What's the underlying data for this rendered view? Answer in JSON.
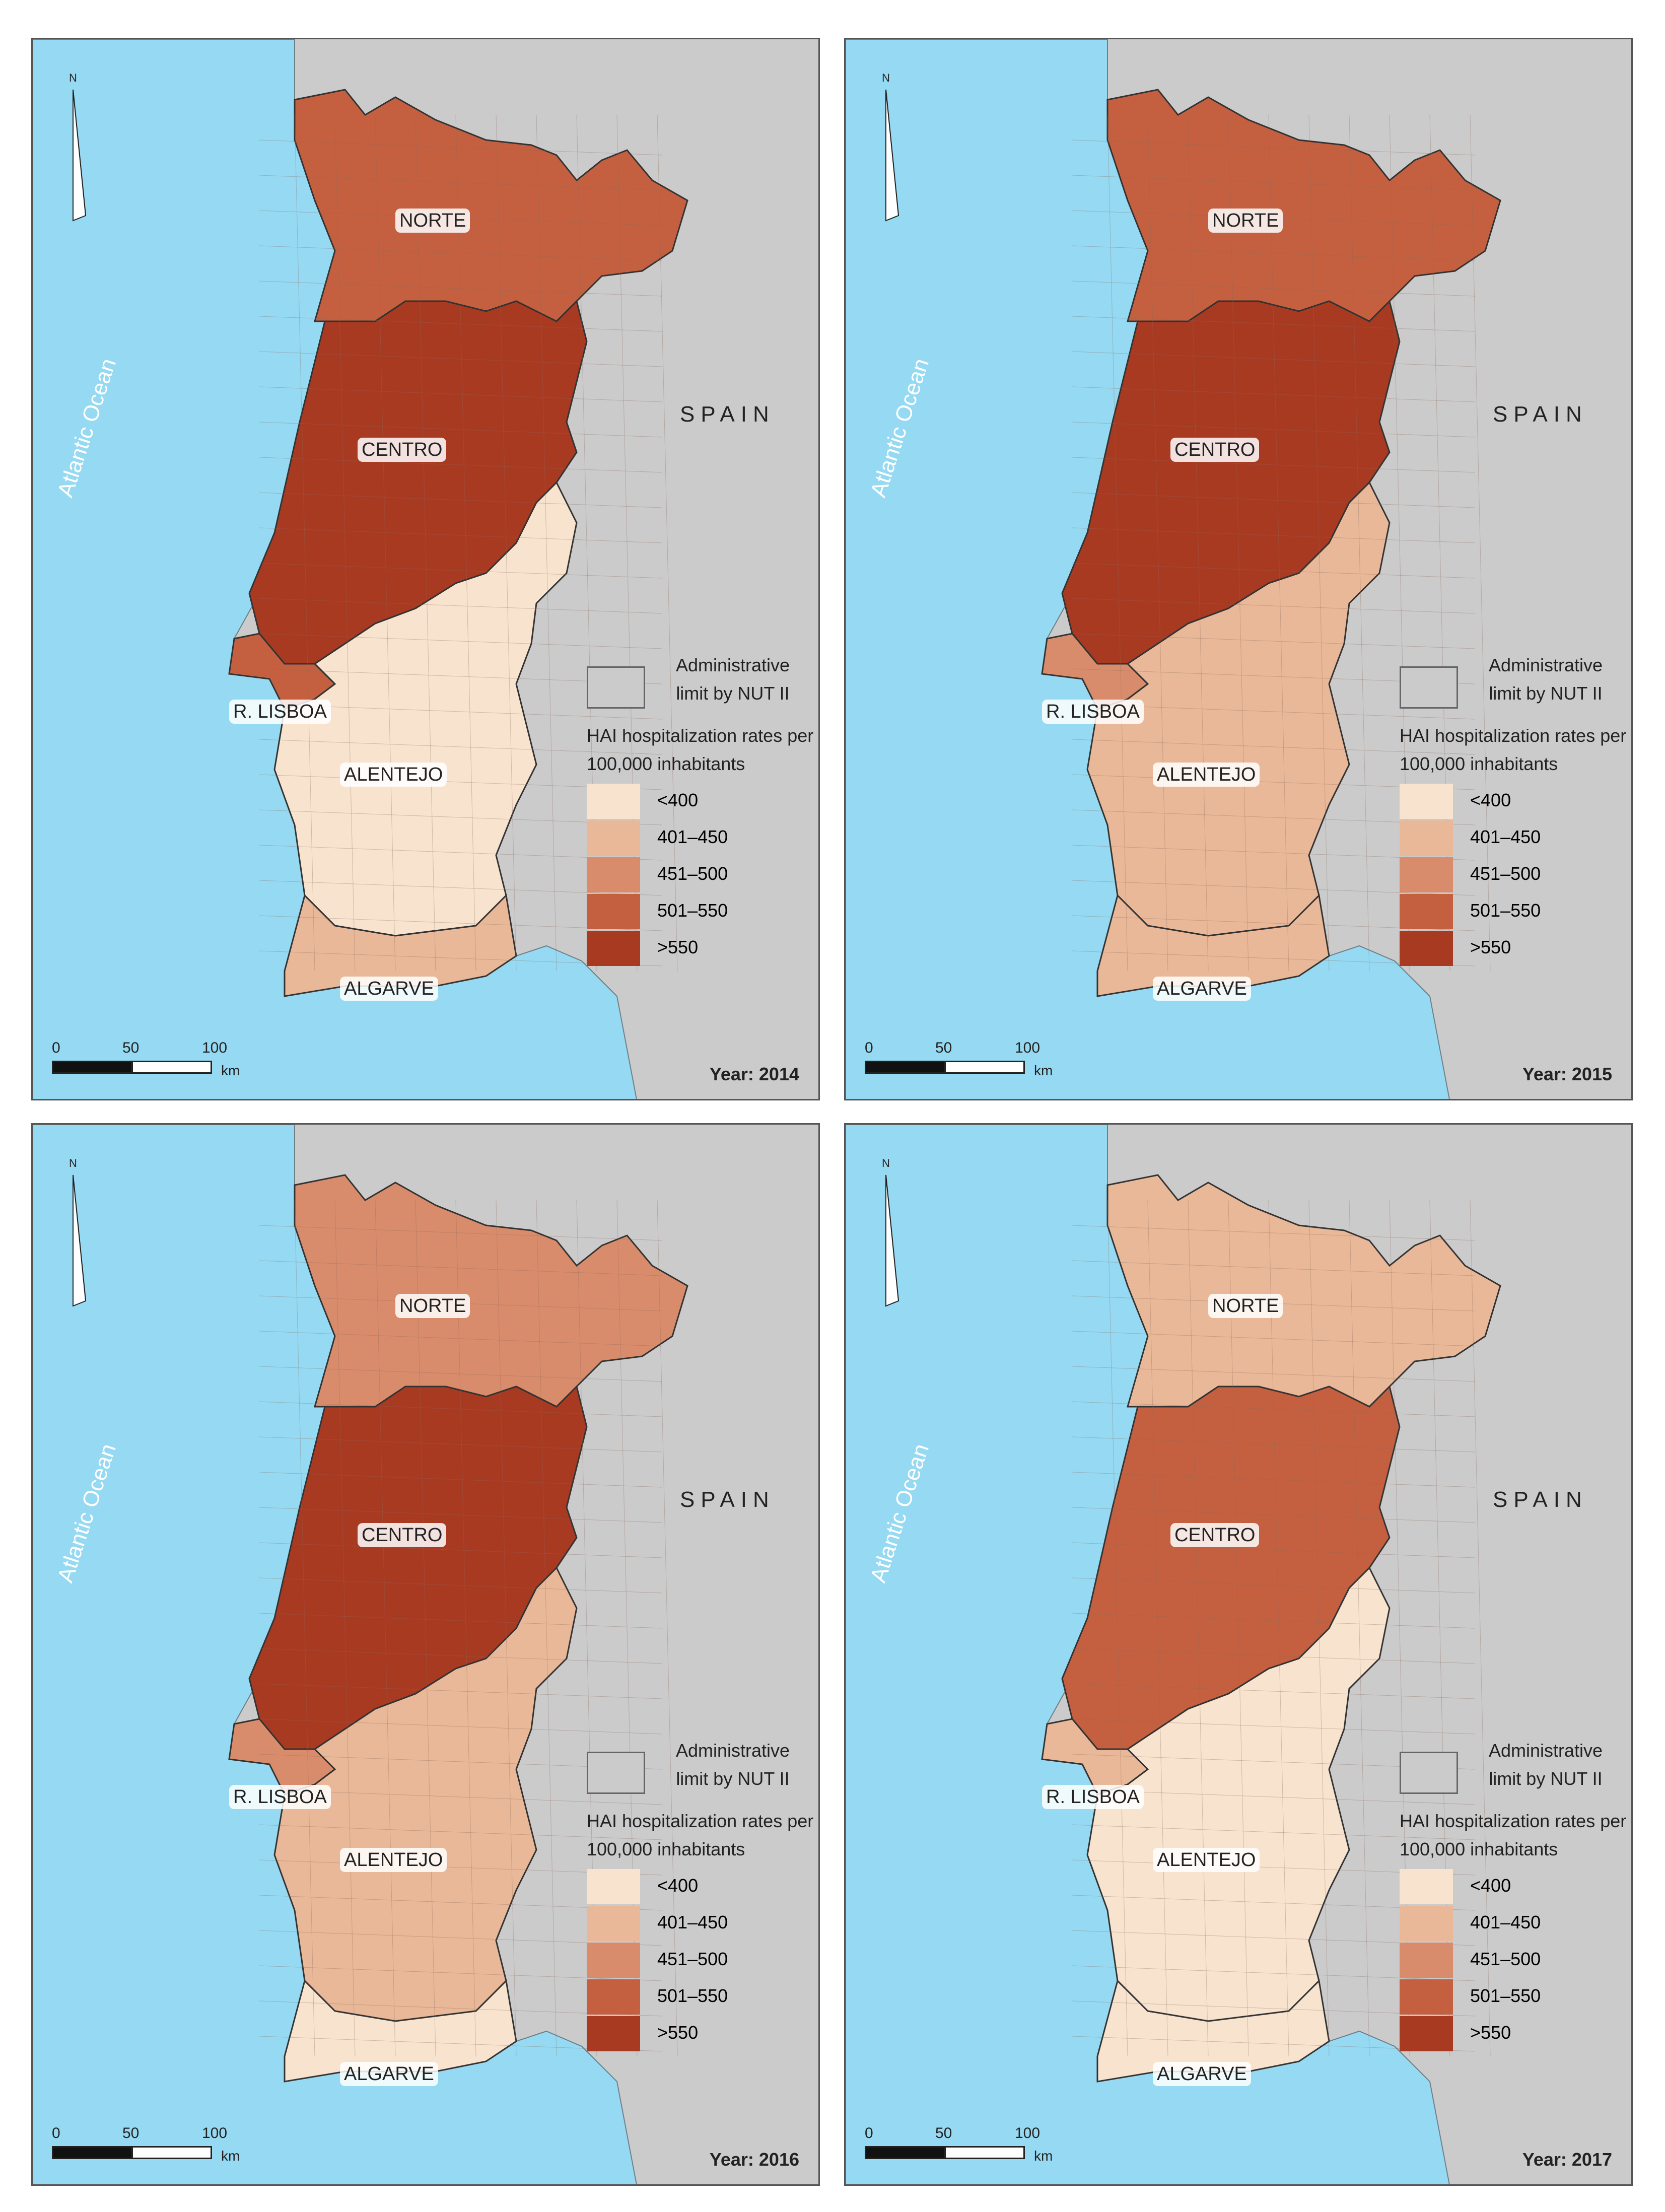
{
  "labels": {
    "spain": "SPAIN",
    "ocean": "Atlantic Ocean",
    "north": "N",
    "regions": [
      "NORTE",
      "CENTRO",
      "R. LISBOA",
      "ALENTEJO",
      "ALGARVE"
    ],
    "legend_admin": "Administrative limit by NUT II",
    "legend_title": "HAI hospitalization rates per 100,000 inhabitants",
    "scale_ticks": [
      "0",
      "50",
      "100"
    ],
    "scale_unit": "km"
  },
  "legend": {
    "classes": [
      {
        "label": "<400",
        "color": "#f7e3ce"
      },
      {
        "label": "401–450",
        "color": "#e9b898"
      },
      {
        "label": "451–500",
        "color": "#d98c6b"
      },
      {
        "label": "501–550",
        "color": "#c4603f"
      },
      {
        "label": ">550",
        "color": "#a93a22"
      }
    ]
  },
  "colors": {
    "land_spain": "#cbcbcb",
    "ocean": "#96d9f2",
    "border": "#8a6a5c",
    "nut_border": "#333333"
  },
  "panels": [
    {
      "year": "Year: 2014",
      "classes": {
        "norte": 3,
        "centro": 4,
        "lisboa": 3,
        "alentejo": 0,
        "algarve": 1
      }
    },
    {
      "year": "Year: 2015",
      "classes": {
        "norte": 3,
        "centro": 4,
        "lisboa": 2,
        "alentejo": 1,
        "algarve": 1
      }
    },
    {
      "year": "Year: 2016",
      "classes": {
        "norte": 2,
        "centro": 4,
        "lisboa": 2,
        "alentejo": 1,
        "algarve": 0
      }
    },
    {
      "year": "Year: 2017",
      "classes": {
        "norte": 1,
        "centro": 3,
        "lisboa": 1,
        "alentejo": 0,
        "algarve": 0
      }
    }
  ]
}
